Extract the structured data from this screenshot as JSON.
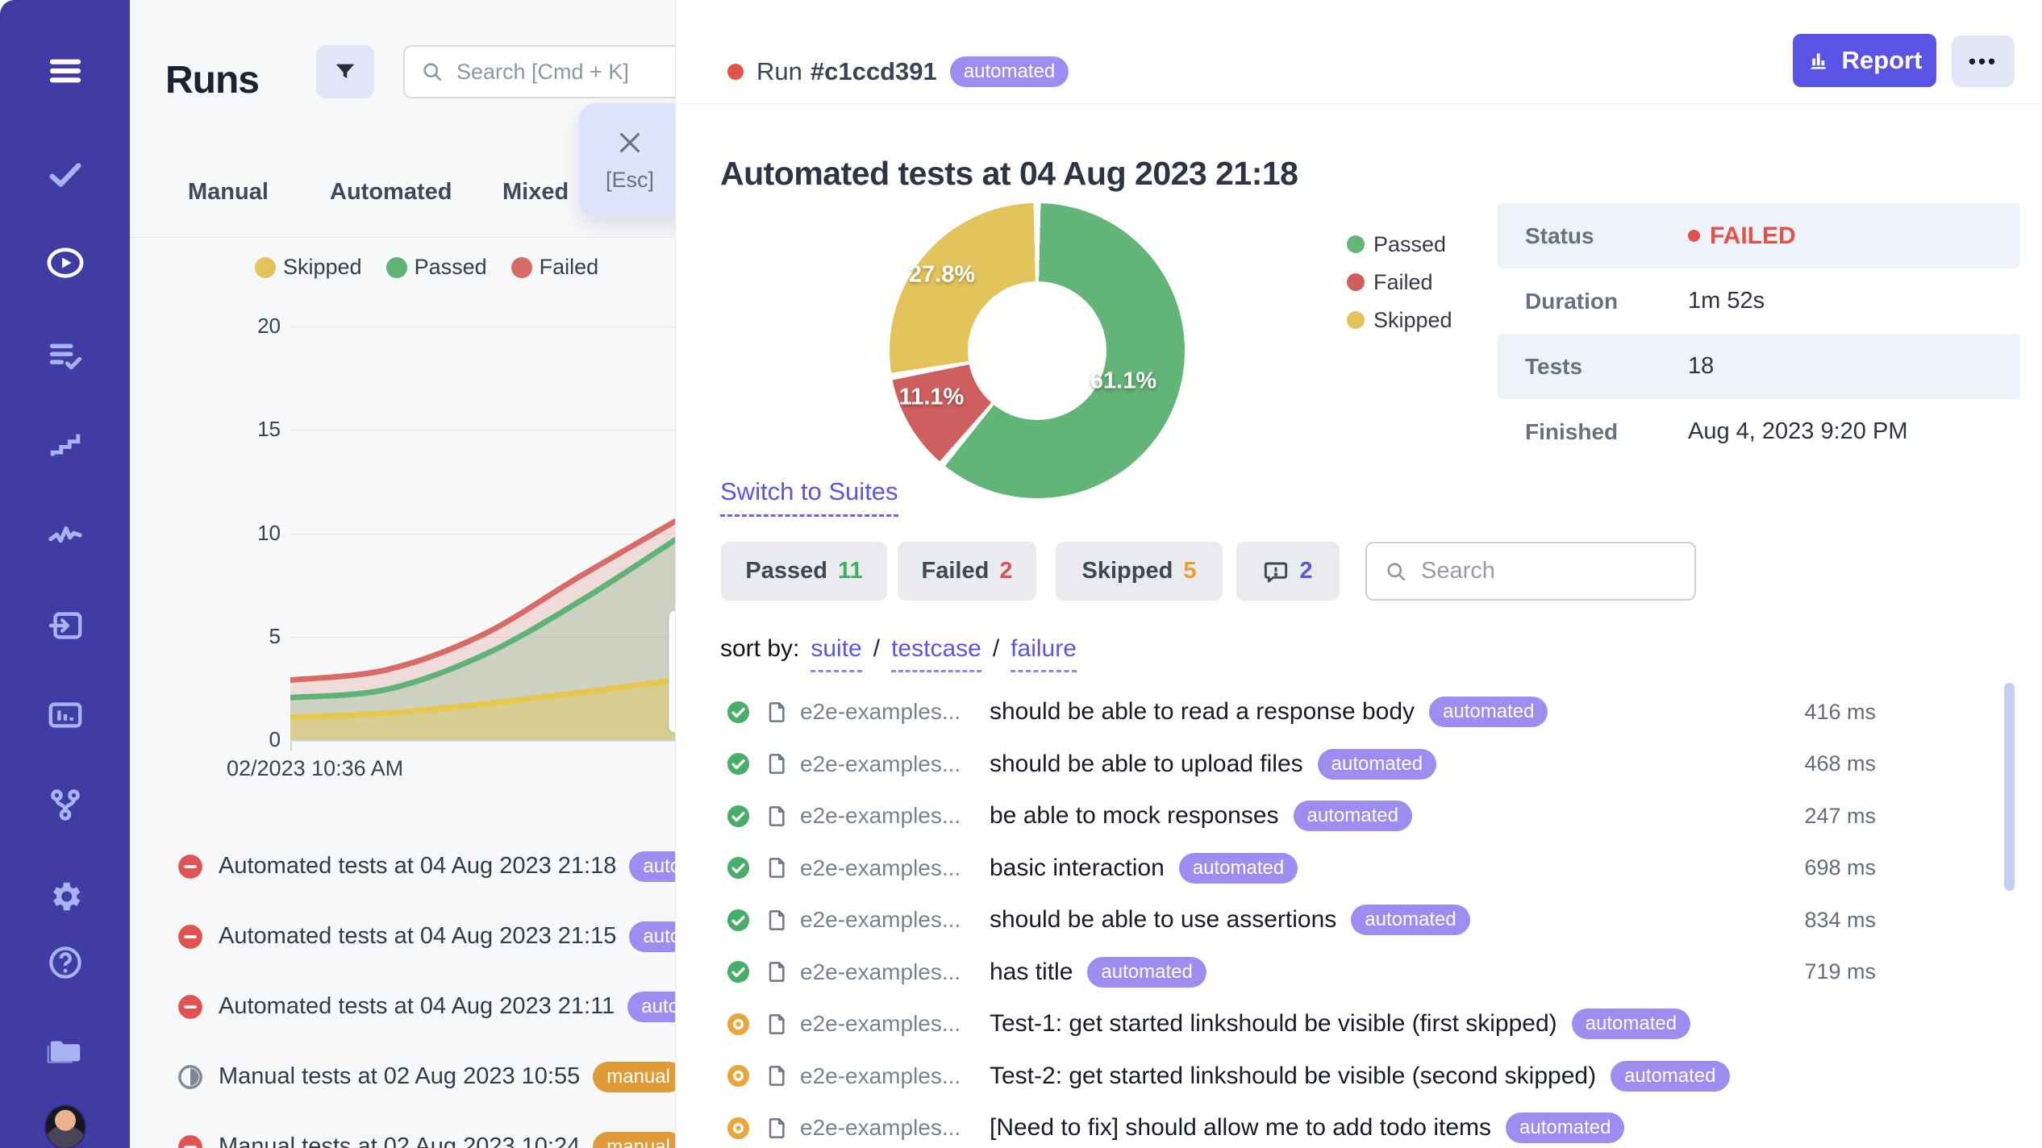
{
  "colors": {
    "sidebar_bg": "#413ca3",
    "accent_purple": "#5b54e6",
    "badge_automated": "#9d8df1",
    "badge_manual": "#e09b36",
    "passed_green": "#62b477",
    "failed_red": "#cf5f5f",
    "skipped_yellow": "#e3c45c",
    "status_failed_red": "#e4504b"
  },
  "sidebar": {
    "items": [
      {
        "icon": "menu-icon"
      },
      {
        "icon": "check-icon"
      },
      {
        "icon": "play-circle-icon"
      },
      {
        "icon": "list-check-icon"
      },
      {
        "icon": "steps-icon"
      },
      {
        "icon": "activity-icon"
      },
      {
        "icon": "import-icon"
      },
      {
        "icon": "bar-chart-icon"
      },
      {
        "icon": "git-branch-icon"
      },
      {
        "icon": "gear-icon"
      },
      {
        "icon": "help-icon"
      },
      {
        "icon": "folder-icon"
      },
      {
        "icon": "avatar"
      }
    ]
  },
  "left_panel": {
    "title": "Runs",
    "search_placeholder": "Search [Cmd + K]",
    "esc_overlay": {
      "label": "[Esc]"
    },
    "tabs": [
      {
        "label": "Manual"
      },
      {
        "label": "Automated"
      },
      {
        "label": "Mixed"
      }
    ],
    "chart_data": {
      "type": "area",
      "legend": [
        {
          "label": "Skipped",
          "color": "#e3c45c"
        },
        {
          "label": "Passed",
          "color": "#5fb377"
        },
        {
          "label": "Failed",
          "color": "#d96b66"
        }
      ],
      "x": [
        0,
        0.25,
        0.5,
        0.75,
        1
      ],
      "series": [
        {
          "name": "Failed",
          "color": "#d96b66",
          "values": [
            2.9,
            3.4,
            5.1,
            7.9,
            10.6
          ]
        },
        {
          "name": "Passed",
          "color": "#5fb377",
          "values": [
            2.05,
            2.45,
            4.1,
            6.7,
            9.7
          ]
        },
        {
          "name": "Skipped",
          "color": "#e6c84f",
          "values": [
            1.1,
            1.3,
            1.75,
            2.3,
            2.9
          ]
        }
      ],
      "ylim": [
        0,
        20
      ],
      "yticks": [
        20,
        15,
        10,
        5,
        0
      ],
      "x_tick_label": "02/2023 10:36 AM",
      "grid": true
    },
    "runs": [
      {
        "status": "failed",
        "title": "Automated tests at 04 Aug 2023 21:18",
        "badge": "automated",
        "badge_type": "automated"
      },
      {
        "status": "failed",
        "title": "Automated tests at 04 Aug 2023 21:15",
        "badge": "automated",
        "badge_type": "automated"
      },
      {
        "status": "failed",
        "title": "Automated tests at 04 Aug 2023 21:11",
        "badge": "automated",
        "badge_type": "automated"
      },
      {
        "status": "half",
        "title": "Manual tests at 02 Aug 2023 10:55",
        "badge": "manual",
        "badge_type": "manual"
      },
      {
        "status": "failed",
        "title": "Manual tests at 02 Aug 2023 10:24",
        "badge": "manual",
        "badge_type": "manual"
      }
    ]
  },
  "run_detail": {
    "run_label": "Run",
    "run_id": "#c1ccd391",
    "run_badge": "automated",
    "report_label": "Report",
    "more_label": "•••",
    "title": "Automated tests at 04 Aug 2023 21:18",
    "chart_data": {
      "type": "pie",
      "donut": true,
      "legend_position": "right",
      "slices": [
        {
          "label": "Passed",
          "pct": 61.1,
          "pct_label": "61.1%",
          "count": 11,
          "color": "#62b477"
        },
        {
          "label": "Failed",
          "pct": 11.1,
          "pct_label": "11.1%",
          "count": 2,
          "color": "#cf5f5f"
        },
        {
          "label": "Skipped",
          "pct": 27.8,
          "pct_label": "27.8%",
          "count": 5,
          "color": "#e3c45c"
        }
      ]
    },
    "summary": [
      {
        "label": "Status",
        "value": "FAILED",
        "type": "status"
      },
      {
        "label": "Duration",
        "value": "1m 52s"
      },
      {
        "label": "Tests",
        "value": "18"
      },
      {
        "label": "Finished",
        "value": "Aug 4, 2023 9:20 PM"
      }
    ],
    "switch_link": "Switch to Suites",
    "filters": [
      {
        "label": "Passed",
        "count": "11",
        "count_color": "#3fae62"
      },
      {
        "label": "Failed",
        "count": "2",
        "count_color": "#e04f4b"
      },
      {
        "label": "Skipped",
        "count": "5",
        "count_color": "#eb9f2e"
      },
      {
        "icon": "comment-icon",
        "count": "2",
        "count_color": "#5b54e6"
      }
    ],
    "search_placeholder": "Search",
    "sort": {
      "prefix": "sort by:",
      "separator": "/",
      "options": [
        {
          "label": "suite"
        },
        {
          "label": "testcase"
        },
        {
          "label": "failure"
        }
      ]
    },
    "tests": [
      {
        "status": "passed",
        "file": "e2e-examples...",
        "title": "should be able to read a response body",
        "badge": "automated",
        "duration": "416 ms"
      },
      {
        "status": "passed",
        "file": "e2e-examples...",
        "title": "should be able to upload files",
        "badge": "automated",
        "duration": "468 ms"
      },
      {
        "status": "passed",
        "file": "e2e-examples...",
        "title": "be able to mock responses",
        "badge": "automated",
        "duration": "247 ms"
      },
      {
        "status": "passed",
        "file": "e2e-examples...",
        "title": "basic interaction",
        "badge": "automated",
        "duration": "698 ms"
      },
      {
        "status": "passed",
        "file": "e2e-examples...",
        "title": "should be able to use assertions",
        "badge": "automated",
        "duration": "834 ms"
      },
      {
        "status": "passed",
        "file": "e2e-examples...",
        "title": "has title",
        "badge": "automated",
        "duration": "719 ms"
      },
      {
        "status": "skipped",
        "file": "e2e-examples...",
        "title": "Test-1: get started linkshould be visible (first skipped)",
        "badge": "automated",
        "duration": ""
      },
      {
        "status": "skipped",
        "file": "e2e-examples...",
        "title": "Test-2: get started linkshould be visible (second skipped)",
        "badge": "automated",
        "duration": ""
      },
      {
        "status": "skipped",
        "file": "e2e-examples...",
        "title": "[Need to fix] should allow me to add todo items",
        "badge": "automated",
        "duration": ""
      }
    ]
  }
}
